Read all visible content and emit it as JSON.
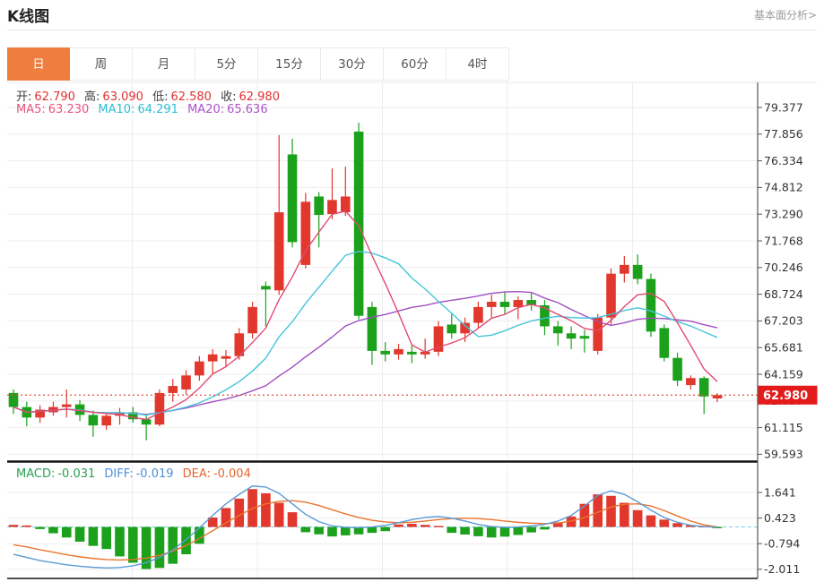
{
  "header": {
    "title": "K线图",
    "analysis_link": "基本面分析>"
  },
  "tabs": {
    "items": [
      {
        "id": "day",
        "label": "日",
        "active": true
      },
      {
        "id": "week",
        "label": "周",
        "active": false
      },
      {
        "id": "month",
        "label": "月",
        "active": false
      },
      {
        "id": "min5",
        "label": "5分",
        "active": false
      },
      {
        "id": "min15",
        "label": "15分",
        "active": false
      },
      {
        "id": "min30",
        "label": "30分",
        "active": false
      },
      {
        "id": "min60",
        "label": "60分",
        "active": false
      },
      {
        "id": "hour4",
        "label": "4时",
        "active": false
      }
    ]
  },
  "quote": {
    "open_label": "开:",
    "open_value": "62.790",
    "high_label": "高:",
    "high_value": "63.090",
    "low_label": "低:",
    "low_value": "62.580",
    "close_label": "收:",
    "close_value": "62.980"
  },
  "ma_readout": {
    "ma5_label": "MA5:",
    "ma5_value": "63.230",
    "ma10_label": "MA10:",
    "ma10_value": "64.291",
    "ma20_label": "MA20:",
    "ma20_value": "65.636"
  },
  "macd_readout": {
    "macd_label": "MACD:",
    "macd_value": "-0.031",
    "diff_label": "DIFF:",
    "diff_value": "-0.019",
    "dea_label": "DEA:",
    "dea_value": "-0.004"
  },
  "colors": {
    "up": "#E1372C",
    "down": "#1BA11B",
    "ma5": "#E04A72",
    "ma10": "#45C5DC",
    "ma20": "#A050C0",
    "diff": "#5B9BD5",
    "dea": "#E8752F",
    "badge": "#E31B1B",
    "price_line": "#E0503C",
    "zero_line": "#7CCFE3",
    "tab_accent": "#EF7E3E",
    "grid": "#ededed",
    "axis": "#555555",
    "tick_text": "#333333"
  },
  "chart_data": {
    "type": "candlestick",
    "convention": "red = up candle, green = down candle (CN market style)",
    "title": "K线图",
    "price_axis_ticks": [
      "79.377",
      "77.856",
      "76.334",
      "74.812",
      "73.290",
      "71.768",
      "70.246",
      "68.724",
      "67.203",
      "65.681",
      "64.159",
      "62.637",
      "61.115",
      "59.593"
    ],
    "current_price": "62.980",
    "ohlc_last": {
      "open": 62.79,
      "high": 63.09,
      "low": 62.58,
      "close": 62.98
    },
    "ma_last": {
      "ma5": 63.23,
      "ma10": 64.291,
      "ma20": 65.636
    },
    "candles": [
      [
        63.1,
        63.3,
        61.9,
        62.3
      ],
      [
        62.3,
        62.6,
        61.2,
        61.7
      ],
      [
        61.7,
        62.4,
        61.4,
        62.15
      ],
      [
        62.0,
        62.6,
        61.8,
        62.3
      ],
      [
        62.3,
        63.3,
        61.7,
        62.45
      ],
      [
        62.45,
        62.7,
        61.5,
        61.85
      ],
      [
        61.85,
        62.1,
        60.6,
        61.25
      ],
      [
        61.25,
        62.0,
        61.0,
        61.8
      ],
      [
        61.8,
        62.25,
        61.3,
        62.0
      ],
      [
        62.0,
        62.3,
        61.4,
        61.6
      ],
      [
        61.6,
        61.9,
        60.4,
        61.3
      ],
      [
        61.3,
        63.3,
        61.2,
        63.1
      ],
      [
        63.1,
        63.9,
        62.6,
        63.5
      ],
      [
        63.3,
        64.4,
        63.0,
        64.1
      ],
      [
        64.1,
        65.2,
        63.8,
        64.9
      ],
      [
        64.9,
        65.6,
        64.2,
        65.3
      ],
      [
        65.05,
        65.55,
        64.6,
        65.2
      ],
      [
        65.2,
        66.8,
        65.0,
        66.5
      ],
      [
        66.5,
        68.3,
        66.2,
        68.0
      ],
      [
        69.2,
        69.45,
        66.9,
        69.0
      ],
      [
        68.95,
        77.8,
        68.7,
        73.4
      ],
      [
        76.7,
        77.6,
        71.4,
        71.7
      ],
      [
        70.4,
        74.5,
        70.2,
        74.0
      ],
      [
        74.3,
        74.55,
        71.4,
        73.25
      ],
      [
        73.3,
        75.9,
        73.0,
        74.1
      ],
      [
        73.4,
        76.0,
        73.2,
        74.3
      ],
      [
        78.0,
        78.5,
        67.3,
        67.5
      ],
      [
        68.0,
        68.3,
        64.7,
        65.5
      ],
      [
        65.5,
        66.0,
        64.9,
        65.3
      ],
      [
        65.3,
        65.9,
        65.0,
        65.6
      ],
      [
        65.45,
        65.8,
        64.8,
        65.3
      ],
      [
        65.3,
        66.2,
        65.05,
        65.45
      ],
      [
        65.45,
        67.2,
        65.2,
        66.9
      ],
      [
        67.0,
        67.6,
        66.2,
        66.5
      ],
      [
        66.5,
        67.4,
        66.0,
        67.1
      ],
      [
        67.1,
        68.3,
        66.8,
        68.0
      ],
      [
        68.0,
        68.7,
        67.4,
        68.3
      ],
      [
        68.3,
        68.9,
        67.6,
        68.0
      ],
      [
        68.0,
        68.6,
        67.3,
        68.4
      ],
      [
        68.4,
        68.8,
        67.8,
        68.1
      ],
      [
        68.1,
        68.4,
        66.4,
        66.9
      ],
      [
        66.9,
        67.2,
        65.8,
        66.5
      ],
      [
        66.5,
        66.9,
        65.6,
        66.2
      ],
      [
        66.35,
        66.7,
        65.4,
        66.2
      ],
      [
        65.5,
        67.6,
        65.3,
        67.4
      ],
      [
        67.4,
        70.2,
        67.0,
        69.9
      ],
      [
        69.9,
        70.9,
        69.4,
        70.4
      ],
      [
        70.4,
        71.0,
        69.3,
        69.6
      ],
      [
        69.6,
        69.9,
        66.3,
        66.6
      ],
      [
        66.8,
        67.0,
        64.9,
        65.1
      ],
      [
        65.1,
        65.4,
        63.5,
        63.8
      ],
      [
        63.55,
        64.1,
        63.3,
        63.95
      ],
      [
        63.95,
        64.05,
        61.9,
        62.9
      ],
      [
        62.79,
        63.09,
        62.58,
        62.98
      ]
    ],
    "macd_axis_ticks": [
      "1.641",
      "0.423",
      "-0.794",
      "-2.011"
    ],
    "macd_hist": [
      0.1,
      0.07,
      -0.1,
      -0.3,
      -0.5,
      -0.7,
      -0.9,
      -1.05,
      -1.4,
      -1.7,
      -2.0,
      -1.95,
      -1.75,
      -1.3,
      -0.8,
      0.45,
      0.9,
      1.35,
      1.8,
      1.6,
      1.15,
      0.7,
      -0.25,
      -0.35,
      -0.45,
      -0.4,
      -0.35,
      -0.28,
      -0.2,
      0.12,
      0.15,
      0.1,
      0.05,
      -0.28,
      -0.36,
      -0.44,
      -0.5,
      -0.46,
      -0.38,
      -0.26,
      -0.12,
      0.22,
      0.5,
      1.1,
      1.55,
      1.48,
      1.15,
      0.8,
      0.55,
      0.35,
      0.18,
      0.08,
      0.04,
      -0.031
    ],
    "macd_diff": [
      -1.3,
      -1.45,
      -1.6,
      -1.7,
      -1.8,
      -1.87,
      -1.92,
      -1.95,
      -1.93,
      -1.85,
      -1.7,
      -1.45,
      -1.1,
      -0.6,
      -0.05,
      0.55,
      1.1,
      1.55,
      1.95,
      1.9,
      1.6,
      1.1,
      0.6,
      0.25,
      0.05,
      -0.02,
      -0.03,
      0.0,
      0.08,
      0.2,
      0.35,
      0.45,
      0.5,
      0.42,
      0.28,
      0.12,
      0.02,
      -0.02,
      0.0,
      0.05,
      0.12,
      0.28,
      0.55,
      1.0,
      1.5,
      1.72,
      1.55,
      1.2,
      0.8,
      0.45,
      0.22,
      0.08,
      0.02,
      -0.019
    ],
    "macd_dea": [
      -0.85,
      -0.95,
      -1.08,
      -1.2,
      -1.32,
      -1.42,
      -1.5,
      -1.55,
      -1.57,
      -1.55,
      -1.48,
      -1.35,
      -1.15,
      -0.88,
      -0.55,
      -0.18,
      0.2,
      0.55,
      0.88,
      1.1,
      1.22,
      1.25,
      1.18,
      1.02,
      0.82,
      0.62,
      0.45,
      0.32,
      0.24,
      0.2,
      0.22,
      0.28,
      0.35,
      0.4,
      0.42,
      0.4,
      0.35,
      0.28,
      0.22,
      0.18,
      0.16,
      0.18,
      0.28,
      0.45,
      0.7,
      0.95,
      1.08,
      1.1,
      1.0,
      0.78,
      0.52,
      0.28,
      0.1,
      -0.004
    ]
  }
}
